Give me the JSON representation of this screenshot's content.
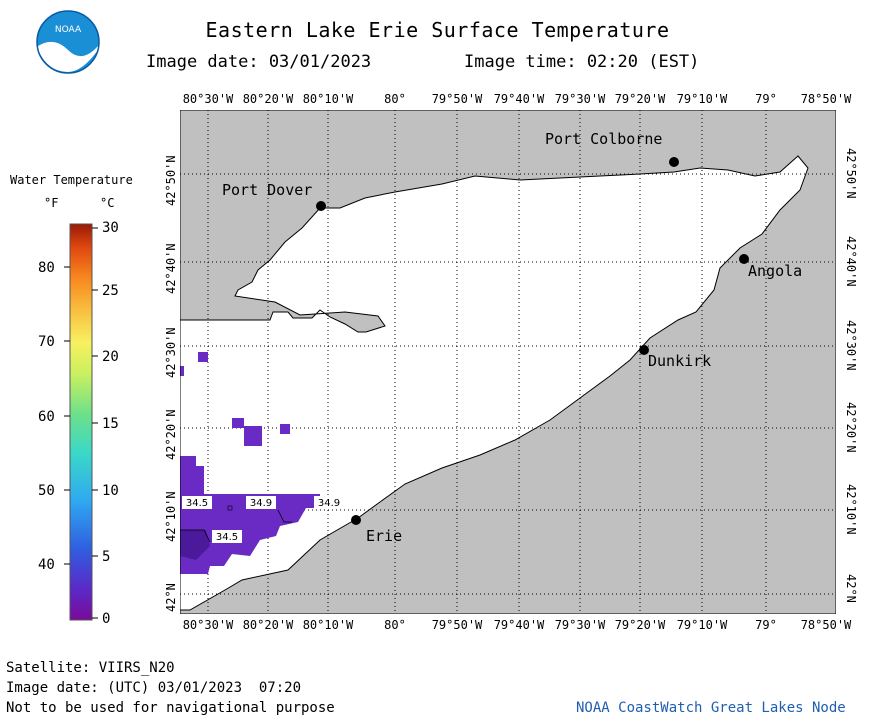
{
  "header": {
    "title": "Eastern Lake Erie Surface Temperature",
    "image_date_label": "Image date: 03/01/2023",
    "image_time_label": "Image time: 02:20 (EST)"
  },
  "logo": {
    "text": "NOAA"
  },
  "legend": {
    "title": "Water Temperature",
    "unit_f": "°F",
    "unit_c": "°C",
    "f_ticks": [
      "80",
      "70",
      "60",
      "50",
      "40"
    ],
    "c_ticks": [
      "30",
      "25",
      "20",
      "15",
      "10",
      "5",
      "0"
    ]
  },
  "map": {
    "lon_labels": [
      "80°30'W",
      "80°20'W",
      "80°10'W",
      "80°",
      "79°50'W",
      "79°40'W",
      "79°30'W",
      "79°20'W",
      "79°10'W",
      "79°",
      "78°50'W"
    ],
    "lat_labels": [
      "42°50'N",
      "42°40'N",
      "42°30'N",
      "42°20'N",
      "42°10'N",
      "42°N"
    ],
    "cities": {
      "port_colborne": "Port Colborne",
      "port_dover": "Port Dover",
      "angola": "Angola",
      "dunkirk": "Dunkirk",
      "erie": "Erie"
    },
    "temps": {
      "t1": "34.5",
      "t2": "34.9",
      "t3": "34.9",
      "t4": "34.5"
    },
    "colors": {
      "land": "#c0c0c0",
      "water": "#ffffff",
      "cold_purple": "#6a2bc4",
      "dark_purple": "#4a1a9a"
    }
  },
  "footer": {
    "satellite": "Satellite: VIIRS_N20",
    "utc_date": "Image date: (UTC) 03/01/2023  07:20",
    "disclaimer": "Not to be used for navigational purpose",
    "credit": "NOAA CoastWatch Great Lakes Node"
  }
}
